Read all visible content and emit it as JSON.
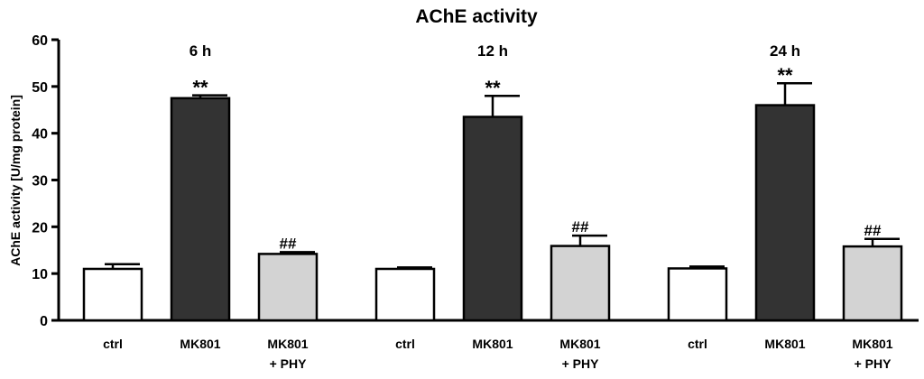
{
  "chart_data": {
    "type": "bar",
    "title": "AChE activity",
    "ylabel": "AChE activity [U/mg protein]",
    "xlabel": "",
    "ylim": [
      0,
      60
    ],
    "yticks": [
      "0",
      "10",
      "20",
      "30",
      "40",
      "50",
      "60"
    ],
    "grid": false,
    "groups": [
      {
        "label": "6 h",
        "bars": [
          {
            "category": "ctrl",
            "category_line2": "",
            "value": 11.0,
            "error": 1.0,
            "annotation": "",
            "fill": "#ffffff"
          },
          {
            "category": "MK801",
            "category_line2": "",
            "value": 47.5,
            "error": 0.6,
            "annotation": "**",
            "fill": "#333333"
          },
          {
            "category": "MK801",
            "category_line2": "+ PHY",
            "value": 14.2,
            "error": 0.4,
            "annotation": "##",
            "fill": "#d3d3d3"
          }
        ]
      },
      {
        "label": "12 h",
        "bars": [
          {
            "category": "ctrl",
            "category_line2": "",
            "value": 11.0,
            "error": 0.3,
            "annotation": "",
            "fill": "#ffffff"
          },
          {
            "category": "MK801",
            "category_line2": "",
            "value": 43.5,
            "error": 4.5,
            "annotation": "**",
            "fill": "#333333"
          },
          {
            "category": "MK801",
            "category_line2": "+ PHY",
            "value": 15.9,
            "error": 2.2,
            "annotation": "##",
            "fill": "#d3d3d3"
          }
        ]
      },
      {
        "label": "24 h",
        "bars": [
          {
            "category": "ctrl",
            "category_line2": "",
            "value": 11.1,
            "error": 0.4,
            "annotation": "",
            "fill": "#ffffff"
          },
          {
            "category": "MK801",
            "category_line2": "",
            "value": 46.0,
            "error": 4.7,
            "annotation": "**",
            "fill": "#333333"
          },
          {
            "category": "MK801",
            "category_line2": "+ PHY",
            "value": 15.8,
            "error": 1.6,
            "annotation": "##",
            "fill": "#d3d3d3"
          }
        ]
      }
    ]
  }
}
